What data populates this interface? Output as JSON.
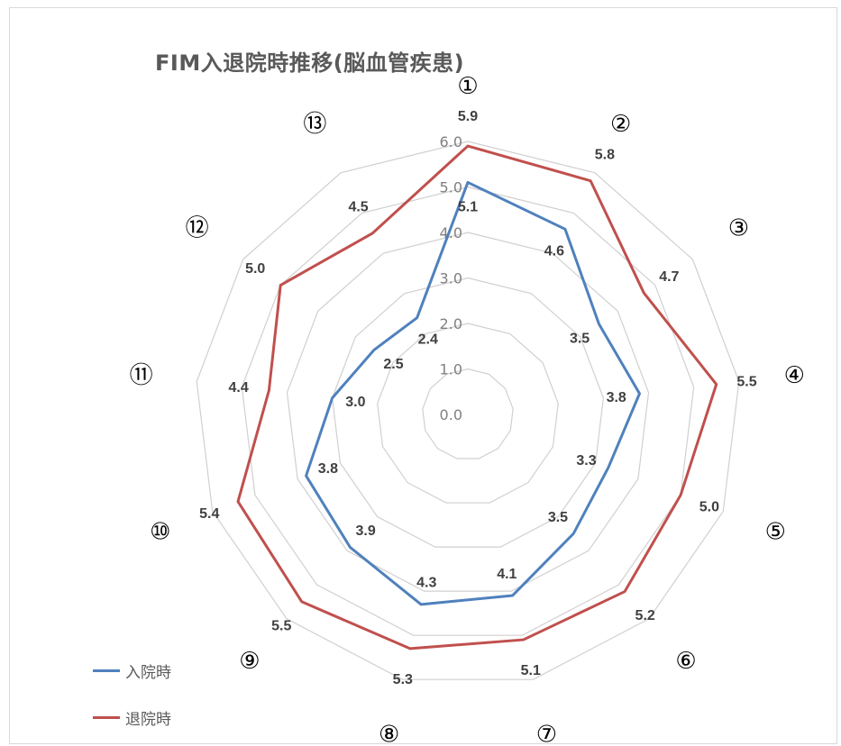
{
  "chart_data": {
    "type": "radar",
    "title": "FIM入退院時推移(脳血管疾患)",
    "categories": [
      "①",
      "②",
      "③",
      "④",
      "⑤",
      "⑥",
      "⑦",
      "⑧",
      "⑨",
      "⑩",
      "⑪",
      "⑫",
      "⑬"
    ],
    "axis_ticks": [
      "0.0",
      "1.0",
      "2.0",
      "3.0",
      "4.0",
      "5.0",
      "6.0"
    ],
    "rlim": [
      0,
      6
    ],
    "legend_position": "bottom-left",
    "series": [
      {
        "name": "入院時",
        "color": "#4f81bd",
        "values": [
          5.1,
          4.6,
          3.5,
          3.8,
          3.3,
          3.5,
          4.1,
          4.3,
          3.9,
          3.8,
          3.0,
          2.5,
          2.4
        ],
        "labels": [
          "5.1",
          "4.6",
          "3.5",
          "3.8",
          "3.3",
          "3.5",
          "4.1",
          "4.3",
          "3.9",
          "3.8",
          "3.0",
          "2.5",
          "2.4"
        ]
      },
      {
        "name": "退院時",
        "color": "#c0504d",
        "values": [
          5.9,
          5.8,
          4.7,
          5.5,
          5.0,
          5.2,
          5.1,
          5.3,
          5.5,
          5.4,
          4.4,
          5.0,
          4.5
        ],
        "labels": [
          "5.9",
          "5.8",
          "4.7",
          "5.5",
          "5.0",
          "5.2",
          "5.1",
          "5.3",
          "5.5",
          "5.4",
          "4.4",
          "5.0",
          "4.5"
        ]
      }
    ]
  }
}
